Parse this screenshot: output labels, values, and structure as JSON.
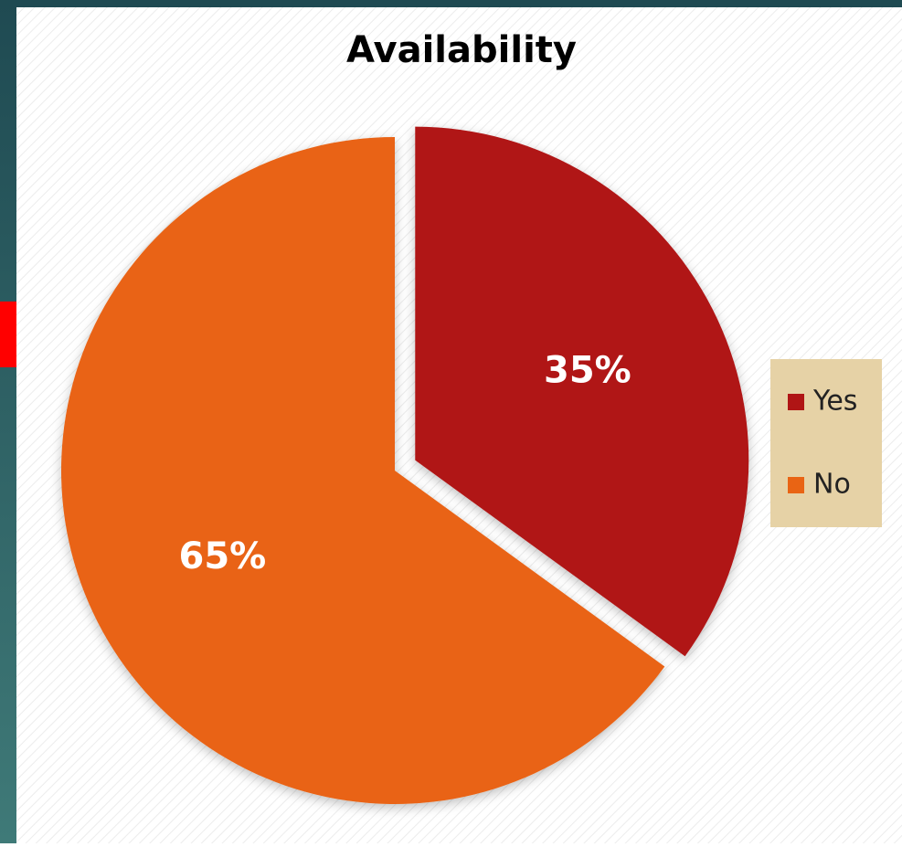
{
  "chart_data": {
    "type": "pie",
    "title": "Availability",
    "categories": [
      "Yes",
      "No"
    ],
    "values": [
      35,
      65
    ],
    "value_labels": [
      "35%",
      "65%"
    ],
    "colors": [
      "#b01515",
      "#e96414"
    ],
    "legend": "right"
  }
}
